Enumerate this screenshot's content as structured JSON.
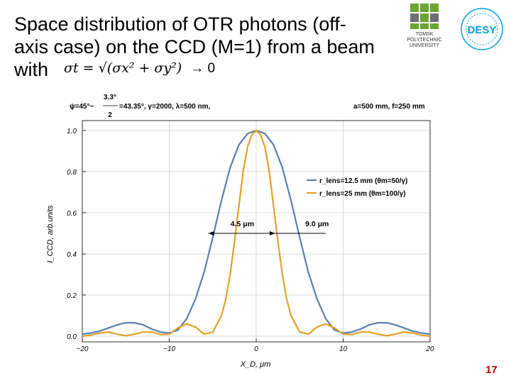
{
  "slide": {
    "title_line1": "Space distribution of OTR photons (off-",
    "title_line2": "axis case) on the CCD (M=1) from a beam",
    "title_line3": "with",
    "formula_text": "σt = √(σx² + σy²)",
    "formula_arrow": "→ 0",
    "page_number": "17"
  },
  "logos": {
    "tpu_text_line1": "TOMSK",
    "tpu_text_line2": "POLYTECHNIC",
    "tpu_text_line3": "UNIVERSITY",
    "desy_text": "DESY",
    "tpu_green": "#6aa531",
    "tpu_grey": "#6d6e71",
    "desy_blue": "#009fdf"
  },
  "chart_data": {
    "type": "line",
    "header_left": "ψ=45°−",
    "header_frac_num": "3.3°",
    "header_frac_den": "2",
    "header_mid": "=43.35°, γ=2000, λ=500 nm,",
    "header_right": "a=500 mm, f=250 mm",
    "xlabel": "X_D, μm",
    "ylabel": "I_CCD, arb.units",
    "xlim": [
      -20,
      20
    ],
    "ylim": [
      0,
      1.0
    ],
    "x_ticks": [
      -20,
      -10,
      0,
      10,
      20
    ],
    "x_tick_labels": [
      "−20",
      "−10",
      "0",
      "10",
      "20"
    ],
    "y_ticks": [
      0,
      0.2,
      0.4,
      0.6,
      0.8,
      1.0
    ],
    "y_tick_labels": [
      "0.0",
      "0.2",
      "0.4",
      "0.6",
      "0.8",
      "1.0"
    ],
    "legend": [
      {
        "name": "r_lens=12.5 mm (θm=50/γ)",
        "color": "#5b7fb0"
      },
      {
        "name": "r_lens=25 mm (θm=100/γ)",
        "color": "#e3a126"
      }
    ],
    "annotations": [
      {
        "label": "4.5 μm",
        "x1": -5.5,
        "x2": 2.2,
        "y": 0.5
      },
      {
        "label": "9.0 μm",
        "x1": 2.2,
        "x2": 8,
        "y": 0.5
      }
    ],
    "series": [
      {
        "name": "r_lens=12.5 mm",
        "color": "#5b7fb0",
        "x": [
          -20,
          -19,
          -18,
          -17,
          -16,
          -15,
          -14,
          -13,
          -12,
          -11,
          -10,
          -9,
          -8,
          -7,
          -6,
          -5,
          -4,
          -3,
          -2,
          -1,
          0,
          1,
          2,
          3,
          4,
          5,
          6,
          7,
          8,
          9,
          10,
          11,
          12,
          13,
          14,
          15,
          16,
          17,
          18,
          19,
          20
        ],
        "values": [
          0.01,
          0.015,
          0.025,
          0.04,
          0.055,
          0.065,
          0.065,
          0.055,
          0.035,
          0.02,
          0.015,
          0.03,
          0.085,
          0.18,
          0.31,
          0.48,
          0.66,
          0.82,
          0.93,
          0.985,
          1.0,
          0.985,
          0.93,
          0.82,
          0.66,
          0.48,
          0.31,
          0.18,
          0.085,
          0.03,
          0.015,
          0.02,
          0.035,
          0.055,
          0.065,
          0.065,
          0.055,
          0.04,
          0.025,
          0.015,
          0.01
        ]
      },
      {
        "name": "r_lens=25 mm",
        "color": "#e3a126",
        "x": [
          -20,
          -19,
          -18,
          -17,
          -16,
          -15,
          -14,
          -13,
          -12,
          -11,
          -10,
          -9,
          -8,
          -7,
          -6,
          -5,
          -4,
          -3.5,
          -3,
          -2.5,
          -2,
          -1.5,
          -1,
          -0.5,
          0,
          0.5,
          1,
          1.5,
          2,
          2.5,
          3,
          3.5,
          4,
          5,
          6,
          7,
          8,
          9,
          10,
          11,
          12,
          13,
          14,
          15,
          16,
          17,
          18,
          19,
          20
        ],
        "values": [
          0.0,
          0.005,
          0.015,
          0.02,
          0.01,
          0.002,
          0.01,
          0.02,
          0.02,
          0.008,
          0.01,
          0.04,
          0.06,
          0.045,
          0.01,
          0.02,
          0.1,
          0.18,
          0.3,
          0.46,
          0.63,
          0.8,
          0.92,
          0.98,
          1.0,
          0.98,
          0.92,
          0.8,
          0.63,
          0.46,
          0.3,
          0.18,
          0.1,
          0.02,
          0.01,
          0.045,
          0.06,
          0.04,
          0.01,
          0.008,
          0.02,
          0.02,
          0.01,
          0.002,
          0.01,
          0.02,
          0.015,
          0.005,
          0.0
        ]
      }
    ]
  }
}
